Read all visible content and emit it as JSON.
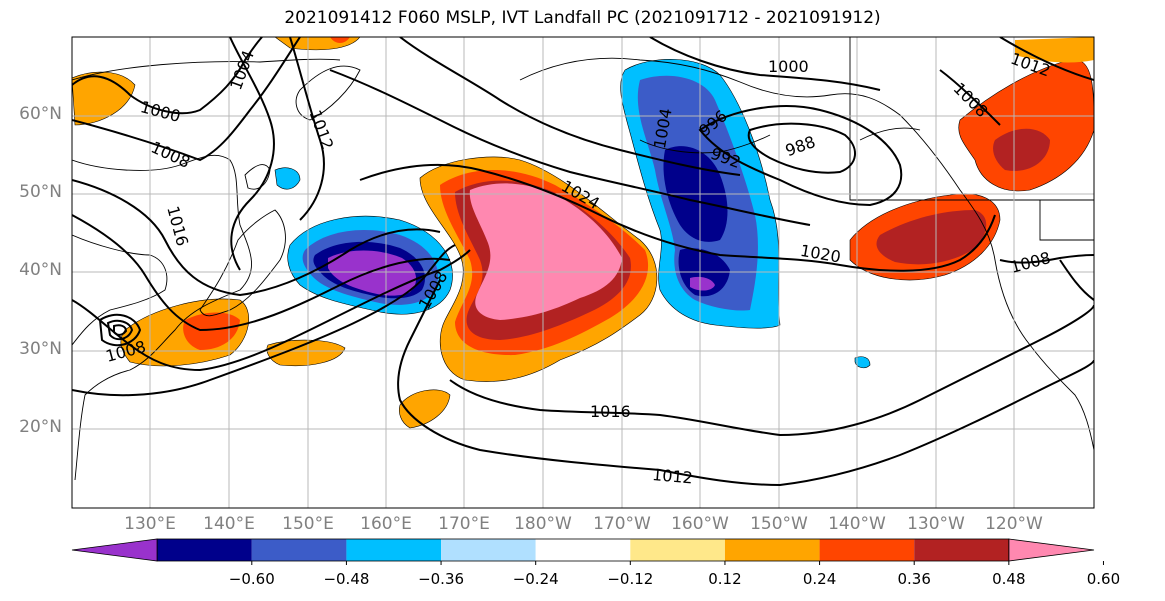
{
  "title": "2021091412 F060 MSLP, IVT Landfall PC (2021091712 - 2021091912)",
  "lat_labels": [
    "60°N",
    "50°N",
    "40°N",
    "30°N",
    "20°N"
  ],
  "lon_labels": [
    "130°E",
    "140°E",
    "150°E",
    "160°E",
    "170°E",
    "180°W",
    "170°W",
    "160°W",
    "150°W",
    "140°W",
    "130°W",
    "120°W"
  ],
  "colorbar": {
    "colors": [
      "#9932cc",
      "#00008b",
      "#3c5cc8",
      "#00bfff",
      "#b0e0ff",
      "#ffffff",
      "#ffe88a",
      "#ffa500",
      "#ff4500",
      "#b22222",
      "#ff88b0"
    ],
    "ticks": [
      "−0.60",
      "−0.48",
      "−0.36",
      "−0.24",
      "−0.12",
      "0.12",
      "0.24",
      "0.36",
      "0.48",
      "0.60"
    ]
  },
  "isobar_labels": [
    "1000",
    "1004",
    "1008",
    "1012",
    "1016",
    "1020",
    "1024",
    "1000",
    "996",
    "992",
    "988",
    "1004",
    "1008",
    "1012",
    "1008",
    "1016",
    "1008",
    "1012",
    "1008"
  ]
}
